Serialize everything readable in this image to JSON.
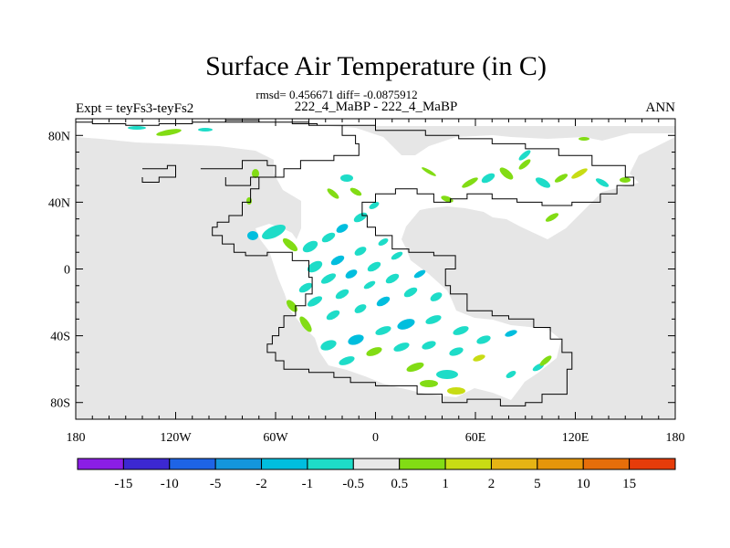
{
  "chart_data": {
    "type": "heatmap",
    "title": "Surface Air Temperature (in C)",
    "subtitle": "rmsd= 0.456671 diff= -0.0875912",
    "left_label": "Expt = teyFs3-teyFs2",
    "center_label": "222_4_MaBP - 222_4_MaBP",
    "right_label": "ANN",
    "x_ticks": [
      {
        "value": -180,
        "label": "180"
      },
      {
        "value": -120,
        "label": "120W"
      },
      {
        "value": -60,
        "label": "60W"
      },
      {
        "value": 0,
        "label": "0"
      },
      {
        "value": 60,
        "label": "60E"
      },
      {
        "value": 120,
        "label": "120E"
      },
      {
        "value": 180,
        "label": "180"
      }
    ],
    "y_ticks": [
      {
        "value": 80,
        "label": "80N"
      },
      {
        "value": 40,
        "label": "40N"
      },
      {
        "value": 0,
        "label": "0"
      },
      {
        "value": -40,
        "label": "40S"
      },
      {
        "value": -80,
        "label": "80S"
      }
    ],
    "xlim": [
      -180,
      180
    ],
    "ylim": [
      -90,
      90
    ],
    "colorbar": {
      "colors": [
        "#8b1ee6",
        "#3c28d2",
        "#1e64e6",
        "#1496dc",
        "#00bede",
        "#1edcc8",
        "#e8e8e8",
        "#82dc14",
        "#c8dc14",
        "#e6b414",
        "#e6960a",
        "#e66e0a",
        "#e63c0a"
      ],
      "labels": [
        "-15",
        "-10",
        "-5",
        "-2",
        "-1",
        "-0.5",
        "0.5",
        "1",
        "2",
        "5",
        "10",
        "15"
      ]
    },
    "background_color": "#e6e6e6",
    "coastline": [
      [
        [
          -180,
          88
        ],
        [
          -170,
          87
        ],
        [
          -150,
          86
        ],
        [
          -130,
          87
        ],
        [
          -110,
          88
        ],
        [
          -90,
          89
        ],
        [
          -70,
          88
        ],
        [
          -50,
          87
        ],
        [
          -35,
          86
        ],
        [
          -20,
          80
        ],
        [
          -12,
          75
        ],
        [
          -10,
          68
        ],
        [
          -25,
          65
        ],
        [
          -45,
          60
        ],
        [
          -55,
          55
        ],
        [
          -70,
          48
        ],
        [
          -75,
          40
        ],
        [
          -80,
          32
        ],
        [
          -88,
          28
        ],
        [
          -95,
          25
        ],
        [
          -98,
          20
        ],
        [
          -92,
          15
        ],
        [
          -85,
          10
        ],
        [
          -78,
          8
        ],
        [
          -65,
          10
        ],
        [
          -50,
          5
        ],
        [
          -40,
          -5
        ],
        [
          -38,
          -15
        ],
        [
          -42,
          -22
        ],
        [
          -48,
          -28
        ],
        [
          -55,
          -35
        ],
        [
          -58,
          -40
        ],
        [
          -62,
          -45
        ],
        [
          -65,
          -50
        ],
        [
          -60,
          -55
        ],
        [
          -55,
          -60
        ],
        [
          -40,
          -62
        ],
        [
          -25,
          -65
        ],
        [
          -15,
          -68
        ],
        [
          0,
          -70
        ],
        [
          15,
          -70
        ],
        [
          25,
          -75
        ],
        [
          40,
          -80
        ],
        [
          55,
          -78
        ],
        [
          75,
          -82
        ],
        [
          90,
          -80
        ],
        [
          100,
          -75
        ],
        [
          115,
          -70
        ],
        [
          115,
          -60
        ],
        [
          118,
          -50
        ],
        [
          112,
          -42
        ],
        [
          105,
          -35
        ],
        [
          95,
          -30
        ],
        [
          80,
          -28
        ],
        [
          70,
          -25
        ],
        [
          55,
          -15
        ],
        [
          45,
          -10
        ],
        [
          42,
          0
        ],
        [
          48,
          8
        ],
        [
          35,
          10
        ],
        [
          20,
          12
        ],
        [
          10,
          20
        ],
        [
          0,
          25
        ],
        [
          -5,
          32
        ],
        [
          -8,
          40
        ],
        [
          0,
          45
        ],
        [
          12,
          48
        ],
        [
          25,
          45
        ],
        [
          35,
          40
        ],
        [
          45,
          42
        ],
        [
          55,
          45
        ],
        [
          70,
          42
        ],
        [
          85,
          40
        ],
        [
          100,
          38
        ],
        [
          118,
          40
        ],
        [
          135,
          45
        ],
        [
          145,
          50
        ],
        [
          155,
          55
        ],
        [
          150,
          62
        ],
        [
          130,
          68
        ],
        [
          110,
          72
        ],
        [
          90,
          75
        ],
        [
          70,
          78
        ],
        [
          50,
          80
        ],
        [
          30,
          83
        ],
        [
          0,
          86
        ],
        [
          -40,
          88
        ],
        [
          -100,
          90
        ]
      ],
      [
        [
          -105,
          60
        ],
        [
          -80,
          65
        ],
        [
          -65,
          62
        ],
        [
          -60,
          55
        ],
        [
          -75,
          50
        ],
        [
          -90,
          55
        ]
      ],
      [
        [
          -140,
          60
        ],
        [
          -125,
          62
        ],
        [
          -120,
          55
        ],
        [
          -130,
          52
        ],
        [
          -140,
          55
        ]
      ]
    ]
  }
}
